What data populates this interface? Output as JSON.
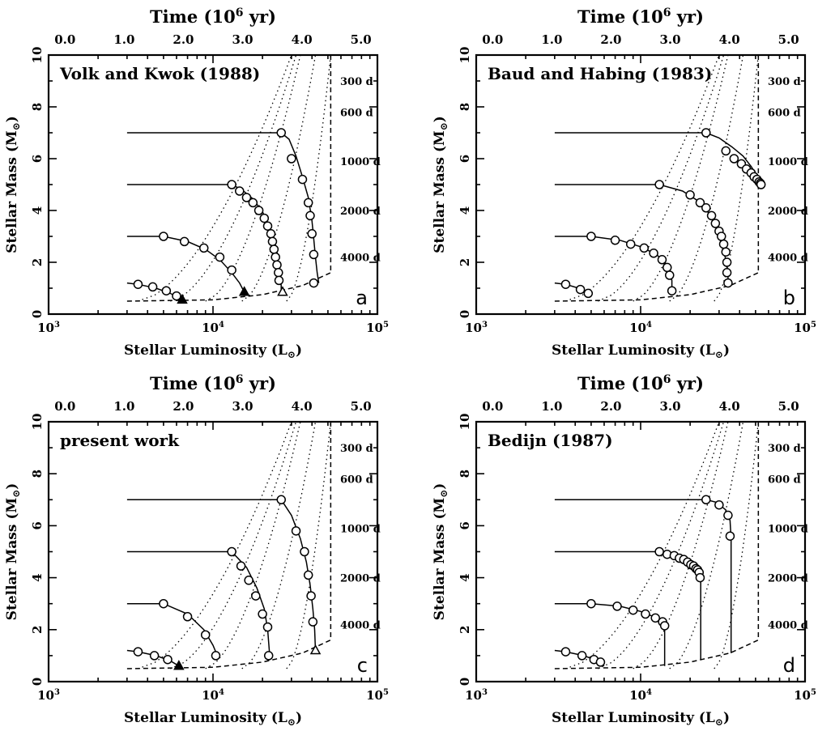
{
  "chart_data": [
    {
      "type": "line",
      "title": "Volk and Kwok (1988)",
      "panel_label": "a",
      "xlabel": "Stellar Luminosity (L",
      "ylabel": "Stellar Mass (M",
      "top_axis_label": "Time (10",
      "xscale": "log",
      "xlim": [
        1000,
        100000
      ],
      "ylim": [
        0,
        10
      ],
      "x_tick_labels": [
        "10",
        "10",
        "10"
      ],
      "x_tick_exponents": [
        "3",
        "4",
        "5"
      ],
      "y_tick_labels": [
        "0",
        "2",
        "4",
        "6",
        "8",
        "10"
      ],
      "top_tick_labels": [
        "0.0",
        "1.0",
        "2.0",
        "3.0",
        "4.0",
        "5.0"
      ],
      "period_labels": [
        "300 d",
        "600 d",
        "1000 d",
        "2000 d",
        "4000 d"
      ],
      "period_curves_luminosity_at_mass_0_5": [
        3500,
        5500,
        9000,
        15000,
        28000
      ],
      "period_curves_luminosity_at_mass_10": [
        30000,
        32000,
        34000,
        42000,
        52000
      ],
      "boundary_luminosity": 52000,
      "dashed_boundary": {
        "L": [
          3000,
          10000,
          20000,
          35000,
          52000
        ],
        "M": [
          0.5,
          0.55,
          0.75,
          1.1,
          1.6
        ]
      },
      "series": [
        {
          "initial_mass": 7,
          "L": [
            3000,
            26000,
            29000,
            32000,
            35000,
            38000,
            40000,
            41000,
            42000,
            43000,
            44000
          ],
          "M": [
            7,
            7,
            6.75,
            6.1,
            5.3,
            4.5,
            3.6,
            2.9,
            2.2,
            1.6,
            1.2
          ],
          "markers_L": [
            26000,
            30000,
            35000,
            38000,
            39000,
            40000,
            41000
          ],
          "markers_M": [
            7,
            6,
            5.2,
            4.3,
            3.8,
            3.1,
            2.3
          ],
          "end_marker": {
            "L": 41000,
            "M": 1.2,
            "shape": "circle"
          }
        },
        {
          "initial_mass": 5,
          "L": [
            3000,
            13000,
            15000,
            17500,
            20000,
            22000,
            23500,
            24500,
            25000,
            25500,
            26000,
            26000
          ],
          "M": [
            5,
            5,
            4.8,
            4.45,
            3.95,
            3.4,
            2.9,
            2.4,
            1.9,
            1.5,
            1.1,
            0.9
          ],
          "markers_L": [
            13000,
            14500,
            16000,
            17500,
            19000,
            20500,
            21500,
            22500,
            23000,
            23500,
            24000,
            24500,
            25000,
            25200
          ],
          "markers_M": [
            5,
            4.75,
            4.5,
            4.3,
            4.0,
            3.7,
            3.4,
            3.1,
            2.8,
            2.5,
            2.2,
            1.9,
            1.6,
            1.3
          ],
          "end_marker": {
            "L": 26500,
            "M": 0.85,
            "shape": "open-triangle"
          }
        },
        {
          "initial_mass": 3,
          "L": [
            3000,
            5000,
            7000,
            9000,
            11000,
            13000,
            14500,
            15500
          ],
          "M": [
            3,
            3,
            2.8,
            2.5,
            2.1,
            1.6,
            1.2,
            0.85
          ],
          "markers_L": [
            5000,
            6700,
            8800,
            11000,
            13000
          ],
          "markers_M": [
            3,
            2.8,
            2.55,
            2.2,
            1.7
          ],
          "end_marker": {
            "L": 15500,
            "M": 0.85,
            "shape": "filled-triangle"
          }
        },
        {
          "initial_mass": 1.2,
          "L": [
            3000,
            3500,
            4500,
            5500,
            6500
          ],
          "M": [
            1.2,
            1.15,
            1.0,
            0.8,
            0.55
          ],
          "markers_L": [
            3500,
            4300,
            5200,
            6000
          ],
          "markers_M": [
            1.15,
            1.05,
            0.9,
            0.7
          ],
          "end_marker": {
            "L": 6500,
            "M": 0.55,
            "shape": "filled-triangle"
          }
        }
      ]
    },
    {
      "type": "line",
      "title": "Baud and Habing (1983)",
      "panel_label": "b",
      "xlabel": "Stellar Luminosity (L",
      "ylabel": "Stellar Mass (M",
      "top_axis_label": "Time (10",
      "xscale": "log",
      "xlim": [
        1000,
        100000
      ],
      "ylim": [
        0,
        10
      ],
      "x_tick_labels": [
        "10",
        "10",
        "10"
      ],
      "x_tick_exponents": [
        "3",
        "4",
        "5"
      ],
      "y_tick_labels": [
        "0",
        "2",
        "4",
        "6",
        "8",
        "10"
      ],
      "top_tick_labels": [
        "0.0",
        "1.0",
        "2.0",
        "3.0",
        "4.0",
        "5.0"
      ],
      "period_labels": [
        "300 d",
        "600 d",
        "1000 d",
        "2000 d",
        "4000 d"
      ],
      "period_curves_luminosity_at_mass_0_5": [
        3500,
        5500,
        9000,
        15000,
        28000
      ],
      "period_curves_luminosity_at_mass_10": [
        30000,
        32000,
        34000,
        42000,
        52000
      ],
      "boundary_luminosity": 52000,
      "dashed_boundary": {
        "L": [
          3000,
          10000,
          20000,
          35000,
          52000
        ],
        "M": [
          0.5,
          0.55,
          0.75,
          1.1,
          1.6
        ]
      },
      "series": [
        {
          "initial_mass": 7,
          "L": [
            3000,
            25000,
            30000,
            36000,
            42000,
            47000,
            51000,
            53000,
            54000
          ],
          "M": [
            7,
            7,
            6.8,
            6.45,
            6.1,
            5.7,
            5.35,
            5.1,
            5.0
          ],
          "markers_L": [
            25000,
            33000,
            37000,
            41000,
            44000,
            47000,
            49000,
            51000,
            52500,
            53500,
            54000
          ],
          "markers_M": [
            7,
            6.3,
            6.0,
            5.8,
            5.6,
            5.45,
            5.3,
            5.2,
            5.1,
            5.05,
            5.0
          ],
          "end_marker": null
        },
        {
          "initial_mass": 5,
          "L": [
            3000,
            13000,
            18000,
            22000,
            26000,
            29000,
            31000,
            33000,
            34000,
            34000
          ],
          "M": [
            5,
            5,
            4.75,
            4.4,
            3.9,
            3.3,
            2.7,
            2.1,
            1.5,
            1.2
          ],
          "markers_L": [
            13000,
            20000,
            23000,
            25000,
            27000,
            28500,
            30000,
            31000,
            32000,
            33000,
            33500,
            33500,
            34000
          ],
          "markers_M": [
            5,
            4.6,
            4.3,
            4.1,
            3.8,
            3.5,
            3.2,
            3.0,
            2.7,
            2.4,
            2.0,
            1.6,
            1.2
          ],
          "end_marker": null
        },
        {
          "initial_mass": 3,
          "L": [
            3000,
            5000,
            7500,
            10000,
            12500,
            14500,
            15500,
            15500
          ],
          "M": [
            3,
            3,
            2.85,
            2.6,
            2.3,
            1.9,
            1.3,
            0.85
          ],
          "markers_L": [
            5000,
            7000,
            8700,
            10500,
            12000,
            13500,
            14500,
            15000,
            15500
          ],
          "markers_M": [
            3,
            2.85,
            2.7,
            2.55,
            2.35,
            2.1,
            1.8,
            1.5,
            0.9
          ],
          "end_marker": null
        },
        {
          "initial_mass": 1.2,
          "L": [
            3000,
            3500,
            4200,
            4900
          ],
          "M": [
            1.2,
            1.15,
            1.0,
            0.75
          ],
          "markers_L": [
            3500,
            4300,
            4800
          ],
          "markers_M": [
            1.15,
            0.95,
            0.8
          ],
          "end_marker": null
        }
      ]
    },
    {
      "type": "line",
      "title": "present work",
      "panel_label": "c",
      "xlabel": "Stellar Luminosity (L",
      "ylabel": "Stellar Mass (M",
      "top_axis_label": "Time (10",
      "xscale": "log",
      "xlim": [
        1000,
        100000
      ],
      "ylim": [
        0,
        10
      ],
      "x_tick_labels": [
        "10",
        "10",
        "10"
      ],
      "x_tick_exponents": [
        "3",
        "4",
        "5"
      ],
      "y_tick_labels": [
        "0",
        "2",
        "4",
        "6",
        "8",
        "10"
      ],
      "top_tick_labels": [
        "0.0",
        "1.0",
        "2.0",
        "3.0",
        "4.0",
        "5.0"
      ],
      "period_labels": [
        "300 d",
        "600 d",
        "1000 d",
        "2000 d",
        "4000 d"
      ],
      "period_curves_luminosity_at_mass_0_5": [
        3500,
        5500,
        9000,
        15000,
        28000
      ],
      "period_curves_luminosity_at_mass_10": [
        30000,
        32000,
        34000,
        42000,
        52000
      ],
      "boundary_luminosity": 52000,
      "dashed_boundary": {
        "L": [
          3000,
          10000,
          20000,
          35000,
          52000
        ],
        "M": [
          0.5,
          0.55,
          0.75,
          1.1,
          1.6
        ]
      },
      "series": [
        {
          "initial_mass": 7,
          "L": [
            3000,
            26000,
            30000,
            34000,
            37000,
            39000,
            40500,
            41500,
            42000
          ],
          "M": [
            7,
            7,
            6.4,
            5.5,
            4.6,
            3.7,
            2.8,
            2.0,
            1.2
          ],
          "markers_L": [
            26000,
            32000,
            36000,
            38000,
            39500,
            40500
          ],
          "markers_M": [
            7,
            5.8,
            5.0,
            4.1,
            3.3,
            2.3
          ],
          "end_marker": {
            "L": 42000,
            "M": 1.2,
            "shape": "open-triangle"
          }
        },
        {
          "initial_mass": 5,
          "L": [
            3000,
            13000,
            16000,
            18500,
            20500,
            21500,
            22000,
            22000
          ],
          "M": [
            5,
            5,
            4.4,
            3.6,
            2.8,
            2.0,
            1.2,
            0.9
          ],
          "markers_L": [
            13000,
            14800,
            16500,
            18200,
            20000,
            21500,
            21800
          ],
          "markers_M": [
            5,
            4.45,
            3.9,
            3.3,
            2.6,
            2.1,
            1.0
          ],
          "end_marker": null
        },
        {
          "initial_mass": 3,
          "L": [
            3000,
            5000,
            7000,
            8800,
            10000,
            10700
          ],
          "M": [
            3,
            3,
            2.6,
            2.0,
            1.4,
            0.95
          ],
          "markers_L": [
            5000,
            7000,
            9000,
            10400
          ],
          "markers_M": [
            3,
            2.5,
            1.8,
            1.0
          ],
          "end_marker": null
        },
        {
          "initial_mass": 1.2,
          "L": [
            3000,
            3500,
            4500,
            5500,
            6200
          ],
          "M": [
            1.2,
            1.15,
            1.0,
            0.8,
            0.6
          ],
          "markers_L": [
            3500,
            4400,
            5300
          ],
          "markers_M": [
            1.15,
            1.0,
            0.85
          ],
          "end_marker": {
            "L": 6200,
            "M": 0.6,
            "shape": "filled-triangle"
          }
        }
      ]
    },
    {
      "type": "line",
      "title": "Bedijn (1987)",
      "panel_label": "d",
      "xlabel": "Stellar Luminosity (L",
      "ylabel": "Stellar Mass (M",
      "top_axis_label": "Time (10",
      "xscale": "log",
      "xlim": [
        1000,
        100000
      ],
      "ylim": [
        0,
        10
      ],
      "x_tick_labels": [
        "10",
        "10",
        "10"
      ],
      "x_tick_exponents": [
        "3",
        "4",
        "5"
      ],
      "y_tick_labels": [
        "0",
        "2",
        "4",
        "6",
        "8",
        "10"
      ],
      "top_tick_labels": [
        "0.0",
        "1.0",
        "2.0",
        "3.0",
        "4.0",
        "5.0"
      ],
      "period_labels": [
        "300 d",
        "600 d",
        "1000 d",
        "2000 d",
        "4000 d"
      ],
      "period_curves_luminosity_at_mass_0_5": [
        3500,
        5500,
        9000,
        15000,
        28000
      ],
      "period_curves_luminosity_at_mass_10": [
        30000,
        32000,
        34000,
        42000,
        52000
      ],
      "boundary_luminosity": 52000,
      "dashed_boundary": {
        "L": [
          3000,
          10000,
          20000,
          35000,
          52000
        ],
        "M": [
          0.5,
          0.55,
          0.75,
          1.1,
          1.6
        ]
      },
      "series": [
        {
          "initial_mass": 7,
          "L": [
            3000,
            25000,
            29000,
            33000,
            35000,
            35500
          ],
          "M": [
            7,
            7,
            6.9,
            6.6,
            6.2,
            5.5
          ],
          "markers_L": [
            25000,
            30000,
            34000,
            35000
          ],
          "markers_M": [
            7,
            6.8,
            6.4,
            5.6
          ],
          "end_marker": null,
          "vertical_drop": {
            "L": 35500,
            "from_M": 5.5,
            "to_M": 1.1
          }
        },
        {
          "initial_mass": 5,
          "L": [
            3000,
            13000,
            17000,
            20000,
            22000,
            23000,
            23300
          ],
          "M": [
            5,
            5,
            4.85,
            4.65,
            4.45,
            4.2,
            3.9
          ],
          "markers_L": [
            13000,
            14500,
            16000,
            17200,
            18300,
            19300,
            20200,
            21000,
            21700,
            22200,
            22700,
            23000
          ],
          "markers_M": [
            5,
            4.9,
            4.85,
            4.75,
            4.7,
            4.6,
            4.5,
            4.45,
            4.35,
            4.3,
            4.2,
            4.0
          ],
          "end_marker": null,
          "vertical_drop": {
            "L": 23200,
            "from_M": 4.0,
            "to_M": 0.85
          }
        },
        {
          "initial_mass": 3,
          "L": [
            3000,
            5000,
            7500,
            10000,
            12000,
            13500,
            14000
          ],
          "M": [
            3,
            3,
            2.9,
            2.7,
            2.5,
            2.3,
            2.1
          ],
          "markers_L": [
            5000,
            7200,
            9000,
            10700,
            12300,
            13600,
            14000
          ],
          "markers_M": [
            3,
            2.9,
            2.75,
            2.6,
            2.45,
            2.3,
            2.15
          ],
          "end_marker": null,
          "vertical_drop": {
            "L": 14000,
            "from_M": 2.1,
            "to_M": 0.6
          }
        },
        {
          "initial_mass": 1.2,
          "L": [
            3000,
            3500,
            4500,
            5500,
            6000
          ],
          "M": [
            1.2,
            1.15,
            1.0,
            0.8,
            0.6
          ],
          "markers_L": [
            3500,
            4400,
            5200,
            5700
          ],
          "markers_M": [
            1.15,
            1.0,
            0.85,
            0.75
          ],
          "end_marker": null
        }
      ]
    }
  ]
}
